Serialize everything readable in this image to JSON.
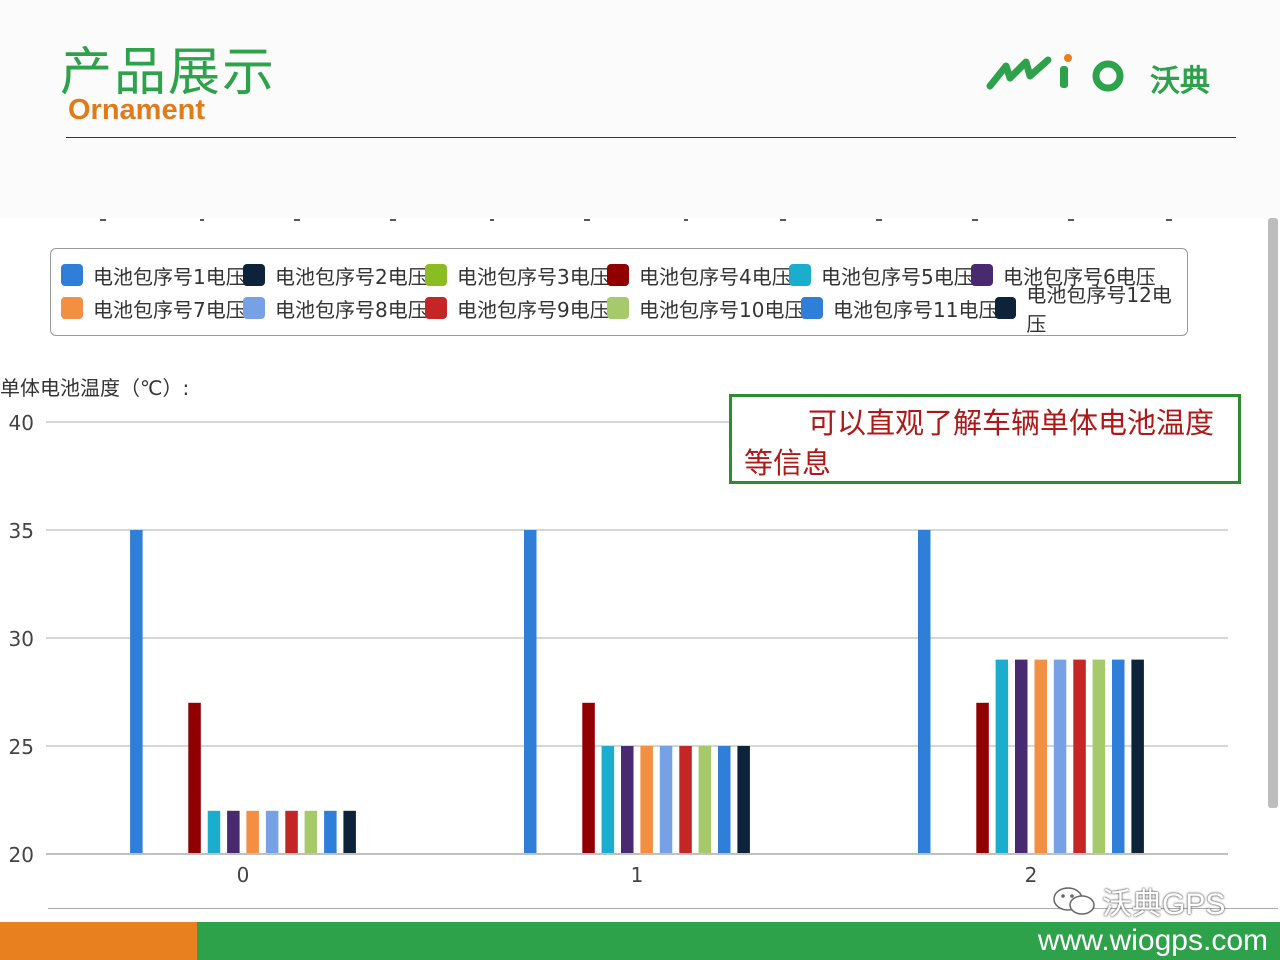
{
  "header": {
    "title_cn": "产品展示",
    "title_en": "Ornament",
    "logo_cn": "沃典"
  },
  "callout": {
    "text": "可以直观了解车辆单体电池温度等信息"
  },
  "footer": {
    "url": "www.wiogps.com",
    "watermark": "沃典GPS"
  },
  "colors": {
    "brand_green": "#2ea24a",
    "brand_orange": "#e98020",
    "callout_border": "#2e8b2e",
    "callout_text": "#b01818"
  },
  "legend": [
    {
      "label": "电池包序号1电压",
      "color": "#2f7ed8"
    },
    {
      "label": "电池包序号2电压",
      "color": "#0d233a"
    },
    {
      "label": "电池包序号3电压",
      "color": "#8bbc21"
    },
    {
      "label": "电池包序号4电压",
      "color": "#910000"
    },
    {
      "label": "电池包序号5电压",
      "color": "#1aadce"
    },
    {
      "label": "电池包序号6电压",
      "color": "#492970"
    },
    {
      "label": "电池包序号7电压",
      "color": "#f28f43"
    },
    {
      "label": "电池包序号8电压",
      "color": "#77a1e5"
    },
    {
      "label": "电池包序号9电压",
      "color": "#c42525"
    },
    {
      "label": "电池包序号10电压",
      "color": "#a6c96a"
    },
    {
      "label": "电池包序号11电压",
      "color": "#2f7ed8"
    },
    {
      "label": "电池包序号12电压",
      "color": "#0d233a"
    }
  ],
  "chart_data": {
    "type": "bar",
    "title": "",
    "ylabel": "单体电池温度（℃）:",
    "xlabel": "",
    "ylim": [
      20,
      40
    ],
    "yticks": [
      20,
      25,
      30,
      35,
      40
    ],
    "categories": [
      "0",
      "1",
      "2"
    ],
    "grid": true,
    "legend_position": "top",
    "series": [
      {
        "name": "电池包序号1电压",
        "values": [
          35,
          35,
          35
        ]
      },
      {
        "name": "电池包序号2电压",
        "values": [
          20,
          20,
          20
        ]
      },
      {
        "name": "电池包序号3电压",
        "values": [
          20,
          20,
          20
        ]
      },
      {
        "name": "电池包序号4电压",
        "values": [
          27,
          27,
          27
        ]
      },
      {
        "name": "电池包序号5电压",
        "values": [
          22,
          25,
          29
        ]
      },
      {
        "name": "电池包序号6电压",
        "values": [
          22,
          25,
          29
        ]
      },
      {
        "name": "电池包序号7电压",
        "values": [
          22,
          25,
          29
        ]
      },
      {
        "name": "电池包序号8电压",
        "values": [
          22,
          25,
          29
        ]
      },
      {
        "name": "电池包序号9电压",
        "values": [
          22,
          25,
          29
        ]
      },
      {
        "name": "电池包序号10电压",
        "values": [
          22,
          25,
          29
        ]
      },
      {
        "name": "电池包序号11电压",
        "values": [
          22,
          25,
          29
        ]
      },
      {
        "name": "电池包序号12电压",
        "values": [
          22,
          25,
          29
        ]
      }
    ]
  }
}
